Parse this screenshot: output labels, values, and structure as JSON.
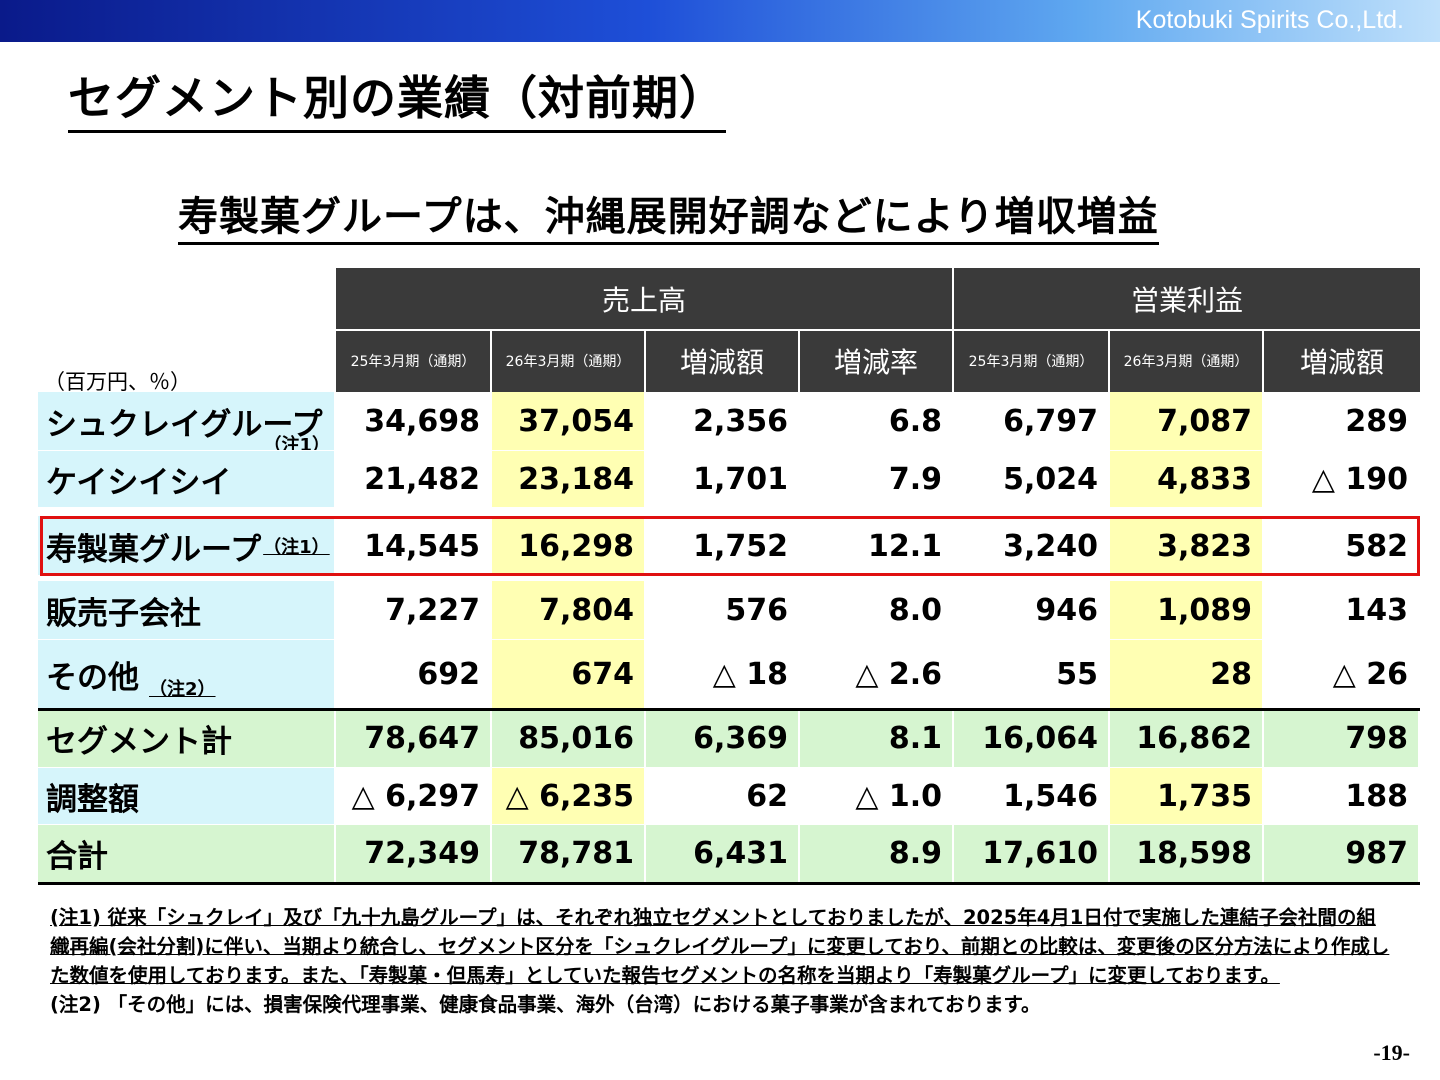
{
  "header": {
    "company": "Kotobuki Spirits Co.,Ltd."
  },
  "title": "セグメント別の業績（対前期）",
  "subtitle": "寿製菓グループは、沖縄展開好調などにより増収増益",
  "unit": "（百万円、％）",
  "table": {
    "group_headers": [
      "売上高",
      "営業利益"
    ],
    "columns": [
      "25年3月期（通期）",
      "26年3月期（通期）",
      "増減額",
      "増減率",
      "25年3月期（通期）",
      "26年3月期（通期）",
      "増減額"
    ],
    "rows": [
      {
        "label": "シュクレイグループ",
        "note": "（注1）",
        "values": [
          "34,698",
          "37,054",
          "2,356",
          "6.8",
          "6,797",
          "7,087",
          "289"
        ]
      },
      {
        "label": "ケイシイシイ",
        "note": "",
        "values": [
          "21,482",
          "23,184",
          "1,701",
          "7.9",
          "5,024",
          "4,833",
          "△ 190"
        ]
      },
      {
        "label": "寿製菓グループ",
        "note": "（注1）",
        "values": [
          "14,545",
          "16,298",
          "1,752",
          "12.1",
          "3,240",
          "3,823",
          "582"
        ]
      },
      {
        "label": "販売子会社",
        "note": "",
        "values": [
          "7,227",
          "7,804",
          "576",
          "8.0",
          "946",
          "1,089",
          "143"
        ]
      },
      {
        "label": "その他",
        "note": "（注2）",
        "values": [
          "692",
          "674",
          "△ 18",
          "△ 2.6",
          "55",
          "28",
          "△ 26"
        ]
      },
      {
        "label": "セグメント計",
        "note": "",
        "values": [
          "78,647",
          "85,016",
          "6,369",
          "8.1",
          "16,064",
          "16,862",
          "798"
        ]
      },
      {
        "label": "調整額",
        "note": "",
        "values": [
          "△ 6,297",
          "△ 6,235",
          "62",
          "△ 1.0",
          "1,546",
          "1,735",
          "188"
        ]
      },
      {
        "label": "合計",
        "note": "",
        "values": [
          "72,349",
          "78,781",
          "6,431",
          "8.9",
          "17,610",
          "18,598",
          "987"
        ]
      }
    ]
  },
  "notes": {
    "note1": "(注1) 従来「シュクレイ」及び「九十九島グループ」は、それぞれ独立セグメントとしておりましたが、2025年4月1日付で実施した連結子会社間の組織再編(会社分割)に伴い、当期より統合し、セグメント区分を「シュクレイグループ」に変更しており、前期との比較は、変更後の区分方法により作成した数値を使用しております。また、「寿製菓・但馬寿」としていた報告セグメントの名称を当期より「寿製菓グループ」に変更しております。",
    "note2": "(注2) 「その他」には、損害保険代理事業、健康食品事業、海外（台湾）における菓子事業が含まれております。"
  },
  "page_number": "-19-",
  "colors": {
    "header_bg": "#3a3a3a",
    "label_bg": "#d6f5fb",
    "highlight": "#ffffb3",
    "total_bg": "#d6f5d0",
    "emphasis_border": "#e01010"
  }
}
